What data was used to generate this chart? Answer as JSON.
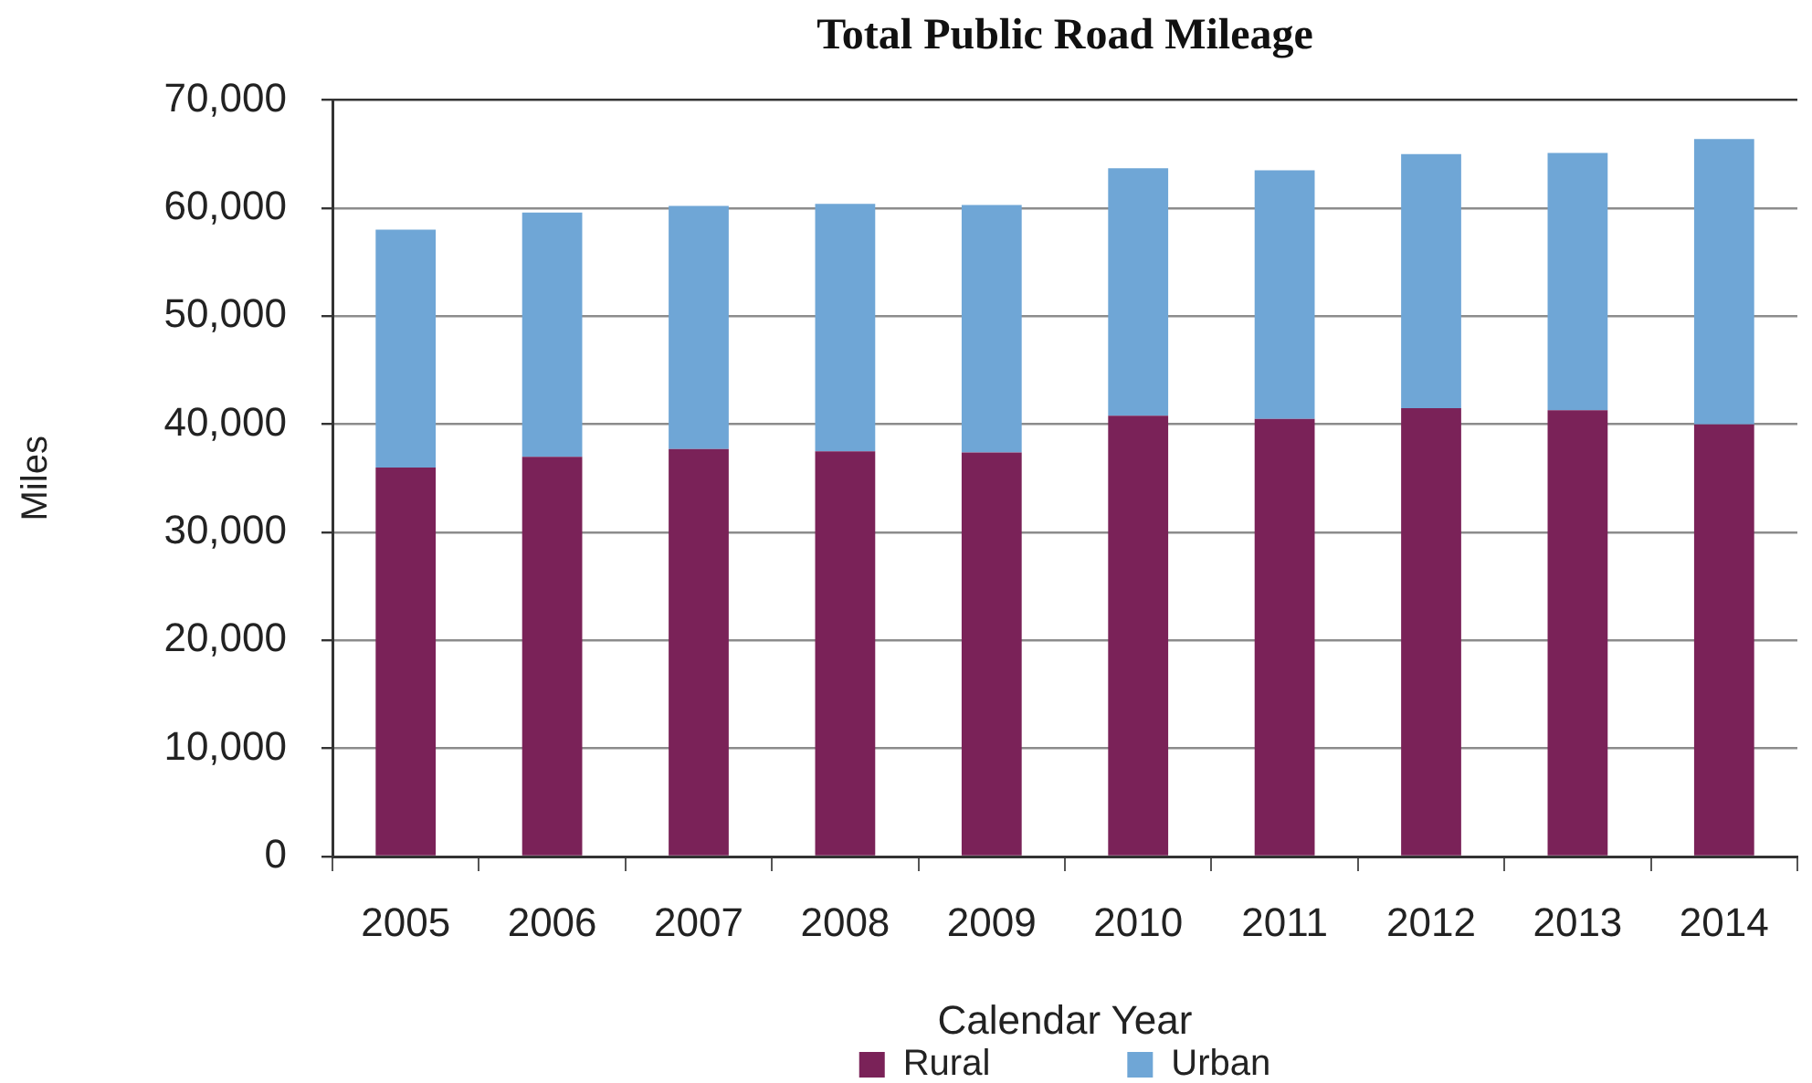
{
  "chart_data": {
    "type": "bar",
    "title": "Total Public Road Mileage",
    "xlabel": "Calendar Year",
    "ylabel": "Miles",
    "categories": [
      "2005",
      "2006",
      "2007",
      "2008",
      "2009",
      "2010",
      "2011",
      "2012",
      "2013",
      "2014"
    ],
    "stacked": true,
    "series": [
      {
        "name": "Rural",
        "color": "#7a2258",
        "values": [
          36000,
          37000,
          37700,
          37500,
          37400,
          40800,
          40500,
          41500,
          41300,
          40000
        ]
      },
      {
        "name": "Urban",
        "color": "#6fa6d6",
        "values": [
          22000,
          22600,
          22500,
          22900,
          22900,
          22900,
          23000,
          23500,
          23800,
          26400
        ]
      }
    ],
    "ylim": [
      0,
      70000
    ],
    "yticks": [
      0,
      {
        "value": 10000,
        "label": "10,000"
      },
      {
        "value": 20000,
        "label": "20,000"
      },
      {
        "value": 30000,
        "label": "30,000"
      },
      {
        "value": 40000,
        "label": "40,000"
      },
      {
        "value": 50000,
        "label": "50,000"
      },
      {
        "value": 60000,
        "label": "60,000"
      },
      {
        "value": 70000,
        "label": "70,000"
      }
    ],
    "grid": "y",
    "legend": "bottom"
  }
}
